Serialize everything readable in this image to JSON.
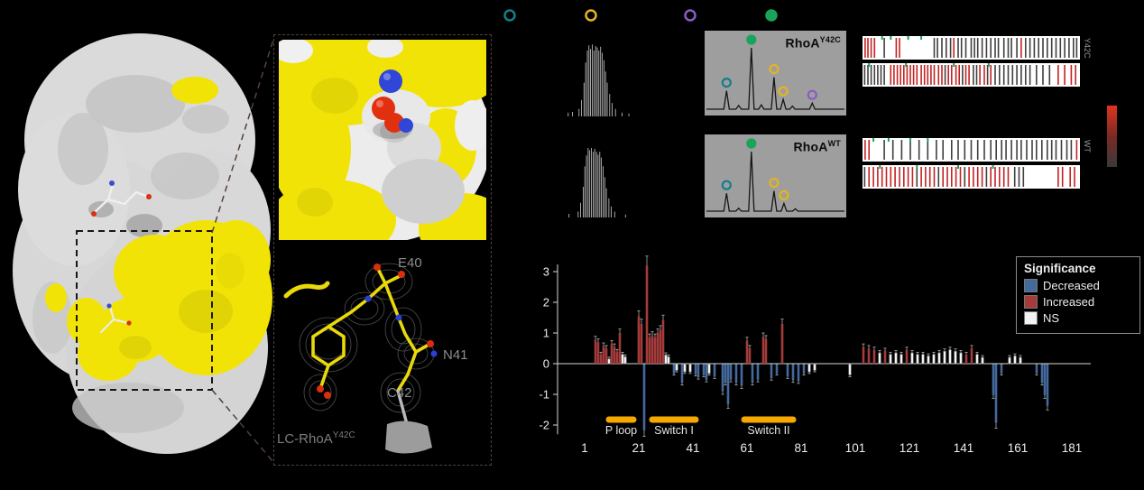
{
  "colors": {
    "background": "#000000",
    "surface_yellow": "#f2e307",
    "surface_gray": "#d9d9d9",
    "frag_red": "#c32222",
    "frag_dark": "#3f3f3f"
  },
  "inset": {
    "residue_labels": [
      "E40",
      "N41",
      "C42"
    ],
    "construct_label": "LC-RhoA",
    "construct_sup": "Y42C"
  },
  "spectra": {
    "marker_colors": {
      "teal": "#147d8a",
      "yellow": "#e3b421",
      "purple": "#8a5bc4",
      "green": "#1aa35a"
    },
    "legend_markers": [
      "teal",
      "yellow",
      "purple",
      "green"
    ],
    "panels": [
      {
        "label": "RhoA",
        "sup": "Y42C",
        "raw": "0.15:0.05 0.20:0.06 0.28:0.10 0.31:0.22 0.34:0.45 0.36:0.72 0.38:0.88 0.40:0.95 0.42:0.90 0.44:0.96 0.46:0.88 0.48:0.94 0.50:0.92 0.52:0.88 0.54:0.93 0.56:0.85 0.58:0.75 0.60:0.60 0.62:0.45 0.65:0.30 0.68:0.18 0.72:0.10 0.80:0.05 0.88:0.04",
        "peaks": [
          {
            "x": 0.155,
            "h": 0.3,
            "m": "teal"
          },
          {
            "x": 0.24,
            "h": 0.06
          },
          {
            "x": 0.33,
            "h": 1.0,
            "m": "green"
          },
          {
            "x": 0.4,
            "h": 0.07
          },
          {
            "x": 0.49,
            "h": 0.52,
            "m": "yellow"
          },
          {
            "x": 0.555,
            "h": 0.16,
            "m": "yellow"
          },
          {
            "x": 0.62,
            "h": 0.05
          },
          {
            "x": 0.76,
            "h": 0.1,
            "m": "purple"
          }
        ]
      },
      {
        "label": "RhoA",
        "sup": "WT",
        "raw": "0.16:0.05 0.27:0.08 0.30:0.20 0.33:0.42 0.35:0.70 0.37:0.85 0.39:0.95 0.41:0.92 0.43:0.95 0.45:0.90 0.47:0.94 0.49:0.90 0.51:0.86 0.53:0.90 0.55:0.82 0.57:0.70 0.59:0.55 0.61:0.40 0.64:0.26 0.67:0.15 0.71:0.08 0.84:0.04",
        "peaks": [
          {
            "x": 0.155,
            "h": 0.3,
            "m": "teal"
          },
          {
            "x": 0.24,
            "h": 0.05
          },
          {
            "x": 0.33,
            "h": 1.0,
            "m": "green"
          },
          {
            "x": 0.49,
            "h": 0.34,
            "m": "yellow"
          },
          {
            "x": 0.56,
            "h": 0.13,
            "m": "yellow"
          },
          {
            "x": 0.64,
            "h": 0.04
          }
        ]
      }
    ]
  },
  "fragment_maps": {
    "side_labels": [
      "Y42C",
      "WT"
    ],
    "rows": [
      {
        "lines": "0.012r 0.025r 0.04r 0.055r 0.10d 0.155r 0.17r 0.33d 0.345d 0.365d 0.385d 0.405d 0.42r 0.44d 0.455d 0.475d 0.50d 0.515d 0.53d 0.55d 0.57d 0.59d 0.61d 0.625d 0.65d 0.67d 0.685d 0.71d 0.73r 0.75d 0.77d 0.79d 0.81d 0.83d 0.85d 0.87d 0.89d 0.91d 0.93d 0.95d 0.97d 0.985d",
        "greens": [
          0.09,
          0.13,
          0.21,
          0.27
        ]
      },
      {
        "lines": "0.01d 0.025d 0.04d 0.055d 0.07d 0.085d 0.10d 0.13r 0.145r 0.16r 0.175r 0.19r 0.205r 0.22r 0.235r 0.25r 0.27r 0.285r 0.30r 0.315r 0.33r 0.35r 0.365r 0.38d 0.395r 0.41r 0.43r 0.445r 0.46d 0.475r 0.49r 0.51d 0.525d 0.54r 0.56r 0.575d 0.59r 0.61d 0.63d 0.65d 0.67d 0.69d 0.71d 0.73d 0.75d 0.77d 0.80d 0.83d 0.86d 0.90r 0.93r 0.96r 0.98r",
        "greens": [
          0.03,
          0.2,
          0.42,
          0.58
        ]
      },
      {
        "lines": "0.012r 0.03r 0.10d 0.14d 0.18d 0.22d 0.26d 0.30d 0.34d 0.37d 0.41d 0.44d 0.47d 0.50d 0.53d 0.56d 0.59d 0.615d 0.64d 0.66d 0.685d 0.71d 0.73d 0.755d 0.78d 0.80d 0.825d 0.85d 0.87d 0.89d 0.915d 0.94d 0.96d 0.985r",
        "greens": [
          0.05,
          0.12,
          0.22,
          0.3
        ]
      },
      {
        "lines": "0.01d 0.03r 0.05r 0.07r 0.09r 0.11r 0.13r 0.15r 0.17r 0.19r 0.21r 0.23r 0.25d 0.27r 0.29r 0.31r 0.33r 0.35d 0.37r 0.39r 0.41r 0.43r 0.45r 0.47d 0.49r 0.51r 0.53r 0.55r 0.57d 0.59r 0.61r 0.63r 0.65r 0.67r 0.70d 0.72d 0.74d 0.90r 0.92r 0.955r 0.975r",
        "greens": [
          0.08,
          0.25,
          0.44,
          0.6
        ]
      }
    ]
  },
  "colorbar": {
    "top": "#e03420",
    "mid": "#7a2a22",
    "bottom": "#3a3a3a"
  },
  "chart_data": {
    "type": "bar",
    "title": "",
    "xlabel": "",
    "ylabel": "",
    "ylim": [
      -2.4,
      3.4
    ],
    "yticks": [
      3,
      2,
      1,
      0,
      -1,
      -2
    ],
    "xticks": [
      1,
      21,
      41,
      61,
      81,
      101,
      121,
      141,
      161,
      181
    ],
    "annotation_color": "#f5a800",
    "annotations": [
      {
        "label": "P loop",
        "start": 10,
        "end": 19
      },
      {
        "label": "Switch I",
        "start": 26,
        "end": 42
      },
      {
        "label": "Switch II",
        "start": 60,
        "end": 78
      }
    ],
    "legend": {
      "title": "Significance",
      "items": [
        {
          "label": "Decreased",
          "color": "#44699d"
        },
        {
          "label": "Increased",
          "color": "#a63b3b"
        },
        {
          "label": "NS",
          "color": "#f2f2f2"
        }
      ]
    },
    "bars": [
      [
        5,
        0.78,
        "i"
      ],
      [
        6,
        0.7,
        "i"
      ],
      [
        7,
        0.3,
        "i"
      ],
      [
        8,
        0.58,
        "i"
      ],
      [
        9,
        0.5,
        "i"
      ],
      [
        10,
        0.15,
        "n"
      ],
      [
        11,
        0.65,
        "i"
      ],
      [
        12,
        0.55,
        "i"
      ],
      [
        13,
        0.38,
        "i"
      ],
      [
        14,
        1.0,
        "i"
      ],
      [
        15,
        0.3,
        "n"
      ],
      [
        16,
        0.22,
        "n"
      ],
      [
        21,
        1.55,
        "i"
      ],
      [
        22,
        1.3,
        "i"
      ],
      [
        23,
        -2.15,
        "d"
      ],
      [
        24,
        3.2,
        "i"
      ],
      [
        25,
        0.85,
        "i"
      ],
      [
        26,
        0.92,
        "i"
      ],
      [
        27,
        0.85,
        "i"
      ],
      [
        28,
        1.0,
        "i"
      ],
      [
        29,
        1.1,
        "i"
      ],
      [
        30,
        1.42,
        "i"
      ],
      [
        31,
        0.28,
        "n"
      ],
      [
        32,
        0.22,
        "n"
      ],
      [
        34,
        -0.3,
        "d"
      ],
      [
        35,
        -0.2,
        "n"
      ],
      [
        37,
        -0.6,
        "d"
      ],
      [
        38,
        -0.25,
        "n"
      ],
      [
        40,
        -0.25,
        "n"
      ],
      [
        42,
        -0.32,
        "d"
      ],
      [
        43,
        -0.42,
        "d"
      ],
      [
        45,
        -0.35,
        "d"
      ],
      [
        46,
        -0.5,
        "d"
      ],
      [
        47,
        -0.3,
        "n"
      ],
      [
        49,
        -0.4,
        "d"
      ],
      [
        52,
        -0.88,
        "d"
      ],
      [
        53,
        -0.6,
        "d"
      ],
      [
        54,
        -1.3,
        "d"
      ],
      [
        55,
        -0.5,
        "d"
      ],
      [
        57,
        -0.6,
        "d"
      ],
      [
        59,
        -0.7,
        "d"
      ],
      [
        61,
        0.75,
        "i"
      ],
      [
        62,
        0.5,
        "i"
      ],
      [
        63,
        -0.6,
        "d"
      ],
      [
        65,
        -0.5,
        "d"
      ],
      [
        67,
        0.88,
        "i"
      ],
      [
        68,
        0.8,
        "i"
      ],
      [
        70,
        -0.45,
        "d"
      ],
      [
        72,
        -0.3,
        "d"
      ],
      [
        74,
        1.3,
        "i"
      ],
      [
        76,
        -0.4,
        "d"
      ],
      [
        78,
        -0.52,
        "d"
      ],
      [
        80,
        -0.55,
        "d"
      ],
      [
        82,
        -0.3,
        "d"
      ],
      [
        84,
        -0.25,
        "n"
      ],
      [
        86,
        -0.2,
        "n"
      ],
      [
        99,
        -0.35,
        "n"
      ],
      [
        104,
        0.55,
        "i"
      ],
      [
        106,
        0.5,
        "i"
      ],
      [
        108,
        0.45,
        "i"
      ],
      [
        110,
        0.35,
        "n"
      ],
      [
        112,
        0.42,
        "i"
      ],
      [
        114,
        0.3,
        "n"
      ],
      [
        116,
        0.35,
        "n"
      ],
      [
        118,
        0.3,
        "n"
      ],
      [
        120,
        0.45,
        "i"
      ],
      [
        122,
        0.35,
        "n"
      ],
      [
        124,
        0.3,
        "n"
      ],
      [
        126,
        0.3,
        "n"
      ],
      [
        128,
        0.25,
        "n"
      ],
      [
        130,
        0.3,
        "n"
      ],
      [
        132,
        0.35,
        "n"
      ],
      [
        134,
        0.4,
        "n"
      ],
      [
        136,
        0.45,
        "n"
      ],
      [
        138,
        0.4,
        "n"
      ],
      [
        140,
        0.35,
        "n"
      ],
      [
        142,
        0.3,
        "i"
      ],
      [
        144,
        0.5,
        "i"
      ],
      [
        146,
        0.3,
        "n"
      ],
      [
        148,
        0.2,
        "n"
      ],
      [
        152,
        -1.0,
        "d"
      ],
      [
        153,
        -1.9,
        "d"
      ],
      [
        155,
        -0.3,
        "d"
      ],
      [
        158,
        0.2,
        "n"
      ],
      [
        160,
        0.25,
        "n"
      ],
      [
        162,
        0.2,
        "n"
      ],
      [
        168,
        -0.3,
        "d"
      ],
      [
        170,
        -0.6,
        "d"
      ],
      [
        171,
        -1.0,
        "d"
      ],
      [
        172,
        -1.35,
        "d"
      ]
    ]
  }
}
